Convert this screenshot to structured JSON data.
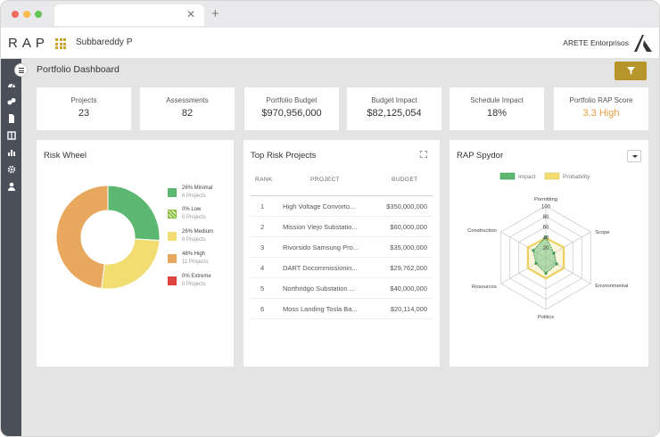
{
  "header": {
    "logo": "RAP",
    "user_name": "Subbareddy P",
    "org_name": "ARETE Entorprisos"
  },
  "page": {
    "title": "Portfolio Dashboard"
  },
  "kpis": [
    {
      "label": "Projects",
      "value": "23"
    },
    {
      "label": "Assessments",
      "value": "82"
    },
    {
      "label": "Portfolio Budget",
      "value": "$970,956,000"
    },
    {
      "label": "Budget Impact",
      "value": "$82,125,054"
    },
    {
      "label": "Schedule Impact",
      "value": "18%"
    },
    {
      "label": "Portfolio RAP Score",
      "value": "3.3 High"
    }
  ],
  "risk_wheel": {
    "title": "Risk Wheel",
    "legend": [
      {
        "label": "26% Minimal",
        "sub": "6 Projects",
        "color": "#5cb870",
        "share": 26
      },
      {
        "label": "0% Low",
        "sub": "0 Projects",
        "color": "#8bbf3f",
        "share": 0
      },
      {
        "label": "26% Medium",
        "sub": "6 Projects",
        "color": "#f1dd72",
        "share": 26
      },
      {
        "label": "48% High",
        "sub": "11 Projects",
        "color": "#e8a85e",
        "share": 48
      },
      {
        "label": "0% Extreme",
        "sub": "0 Projects",
        "color": "#e0443e",
        "share": 0
      }
    ]
  },
  "top_risk": {
    "title": "Top Risk Projects",
    "columns": {
      "rank": "RANK",
      "project": "PROJECT",
      "budget": "BUDGET"
    },
    "rows": [
      {
        "rank": "1",
        "project": "High Voltage Convorto...",
        "budget": "$350,000,000"
      },
      {
        "rank": "2",
        "project": "Mission Viejo Substatio...",
        "budget": "$60,000,000"
      },
      {
        "rank": "3",
        "project": "Rivorsido Samsung Pro...",
        "budget": "$35,000,000"
      },
      {
        "rank": "4",
        "project": "DART Docommissionin...",
        "budget": "$29,762,000"
      },
      {
        "rank": "5",
        "project": "Northridgo Substation ...",
        "budget": "$40,000,000"
      },
      {
        "rank": "6",
        "project": "Moss Landing Tosla Ba...",
        "budget": "$20,114,000"
      }
    ]
  },
  "spyder": {
    "title": "RAP Spydor",
    "legend": [
      {
        "name": "Impact",
        "color": "#5cb870"
      },
      {
        "name": "Probability",
        "color": "#f1dd72"
      }
    ],
    "ticks": [
      "100",
      "80",
      "60",
      "40",
      "20"
    ],
    "axes": [
      "Pormitting",
      "Scope",
      "Environmental",
      "Politics",
      "Rosourcos",
      "Construction"
    ],
    "impact": [
      40,
      18,
      24,
      30,
      22,
      28
    ],
    "probability": [
      38,
      40,
      40,
      40,
      40,
      40
    ]
  }
}
